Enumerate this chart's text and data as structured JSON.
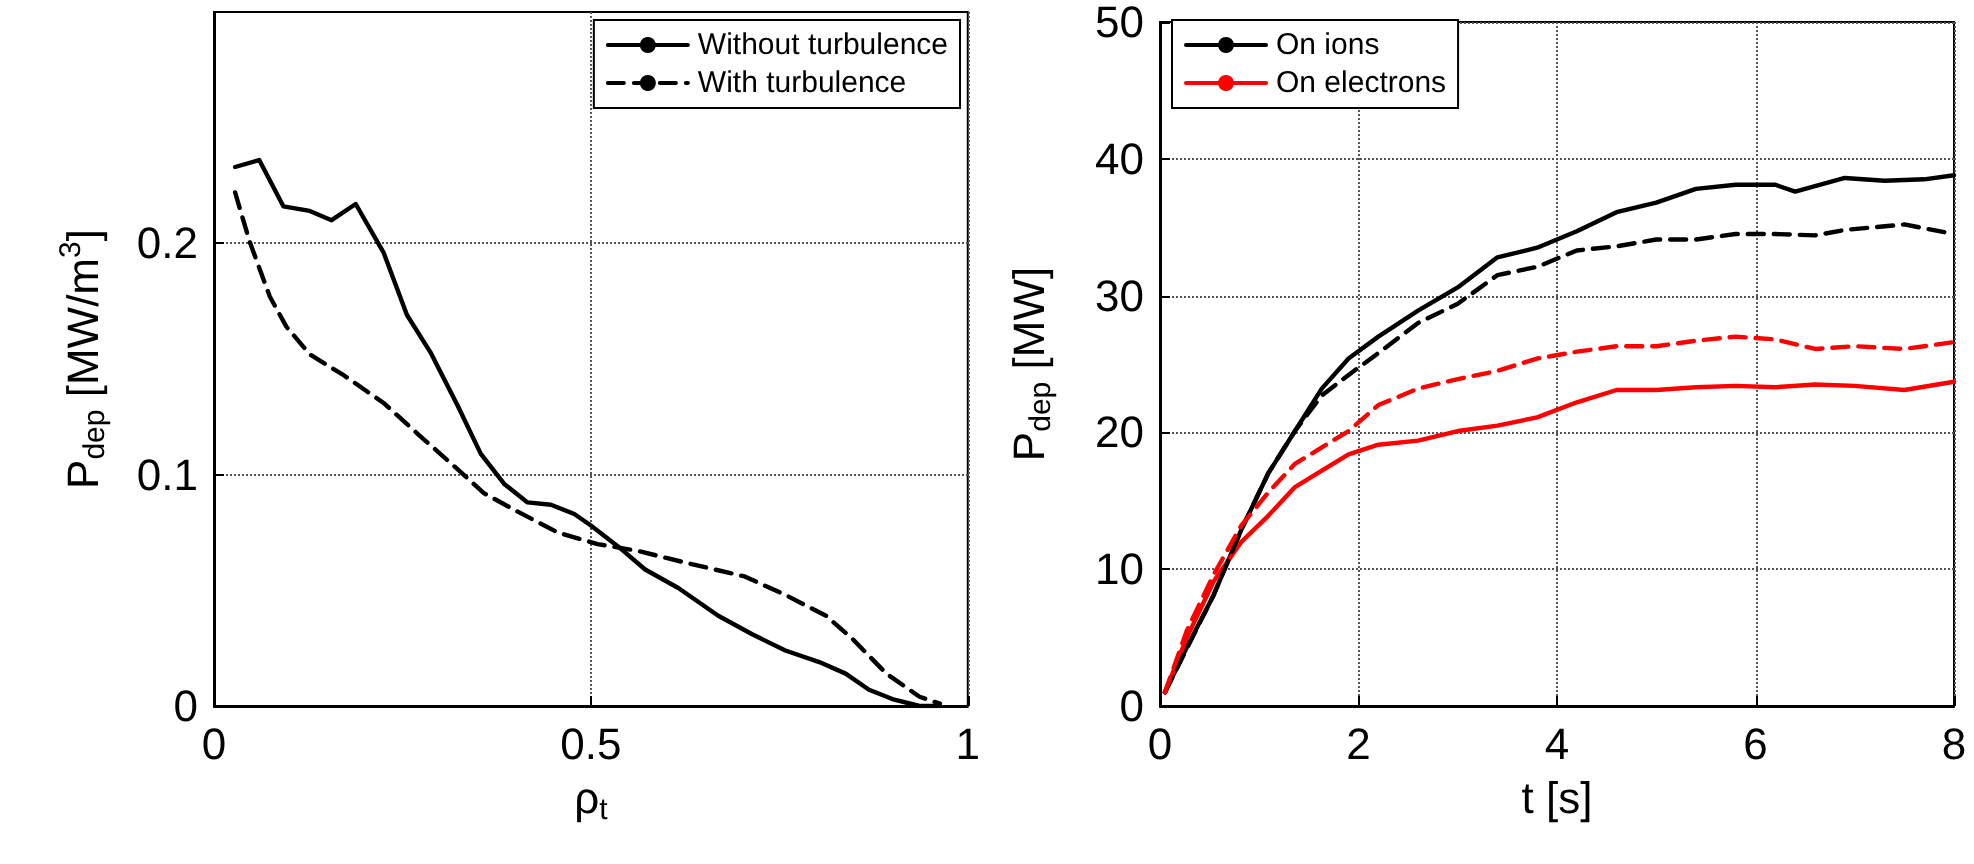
{
  "chart_data": [
    {
      "type": "line",
      "xlabel": "ρ$_{t}$",
      "ylabel": "P$_{dep}$ [MW/m$^{3}$]",
      "xlim": [
        0,
        1
      ],
      "xticks": [
        0,
        0.5,
        1
      ],
      "ylim": [
        0,
        0.3
      ],
      "yticks": [
        0,
        0.1,
        0.2
      ],
      "grid": true,
      "legend": "top right",
      "marker": "none",
      "series": [
        {
          "name": "Without turbulence",
          "color": "#000000",
          "line_style": "solid",
          "x": [
            0.028,
            0.06,
            0.092,
            0.127,
            0.156,
            0.188,
            0.225,
            0.256,
            0.287,
            0.323,
            0.354,
            0.385,
            0.416,
            0.447,
            0.478,
            0.5,
            0.536,
            0.572,
            0.616,
            0.669,
            0.714,
            0.758,
            0.803,
            0.838,
            0.869,
            0.9,
            0.936,
            0.963
          ],
          "values": [
            0.233,
            0.236,
            0.216,
            0.214,
            0.21,
            0.217,
            0.196,
            0.169,
            0.153,
            0.13,
            0.109,
            0.096,
            0.088,
            0.087,
            0.083,
            0.078,
            0.069,
            0.059,
            0.051,
            0.039,
            0.031,
            0.024,
            0.019,
            0.014,
            0.007,
            0.003,
            0.0,
            0.0
          ]
        },
        {
          "name": "With turbulence",
          "color": "#000000",
          "line_style": "dashed",
          "x": [
            0.028,
            0.047,
            0.074,
            0.096,
            0.127,
            0.172,
            0.225,
            0.269,
            0.314,
            0.358,
            0.403,
            0.456,
            0.509,
            0.563,
            0.625,
            0.704,
            0.758,
            0.812,
            0.847,
            0.892,
            0.936,
            0.963
          ],
          "values": [
            0.222,
            0.201,
            0.177,
            0.164,
            0.152,
            0.143,
            0.131,
            0.118,
            0.105,
            0.092,
            0.084,
            0.075,
            0.07,
            0.067,
            0.062,
            0.056,
            0.048,
            0.039,
            0.029,
            0.014,
            0.004,
            0.001
          ]
        }
      ]
    },
    {
      "type": "line",
      "xlabel": "t [s]",
      "ylabel": "P$_{dep}$ [MW]",
      "xlim": [
        0,
        8
      ],
      "xticks": [
        0,
        2,
        4,
        6,
        8
      ],
      "ylim": [
        0,
        50
      ],
      "yticks": [
        0,
        10,
        20,
        30,
        40,
        50
      ],
      "grid": true,
      "legend": "top left",
      "marker": "none",
      "series": [
        {
          "name": "On ions",
          "color": "#000000",
          "line_style": "solid",
          "x": [
            0.05,
            0.27,
            0.54,
            0.82,
            1.09,
            1.36,
            1.63,
            1.9,
            2.2,
            2.6,
            3.0,
            3.4,
            3.8,
            4.2,
            4.6,
            5.0,
            5.4,
            5.8,
            6.2,
            6.4,
            6.6,
            6.9,
            7.3,
            7.7,
            8.0
          ],
          "values": [
            1.0,
            4.3,
            8.1,
            12.9,
            17.0,
            20.1,
            23.2,
            25.4,
            27.0,
            28.9,
            30.6,
            32.8,
            33.5,
            34.7,
            36.1,
            36.8,
            37.8,
            38.1,
            38.1,
            37.6,
            38.0,
            38.6,
            38.4,
            38.5,
            38.8
          ]
        },
        {
          "name": "On electrons",
          "color": "#ff0000",
          "line_style": "solid",
          "x": [
            0.05,
            0.27,
            0.54,
            0.82,
            1.09,
            1.36,
            1.63,
            1.9,
            2.2,
            2.6,
            3.0,
            3.4,
            3.8,
            4.2,
            4.6,
            5.0,
            5.4,
            5.8,
            6.2,
            6.6,
            7.0,
            7.5,
            8.0
          ],
          "values": [
            1.0,
            5.0,
            9.1,
            12.0,
            13.9,
            16.0,
            17.2,
            18.4,
            19.1,
            19.4,
            20.1,
            20.5,
            21.1,
            22.2,
            23.1,
            23.1,
            23.3,
            23.4,
            23.3,
            23.5,
            23.4,
            23.1,
            23.7
          ]
        },
        {
          "color": "#000000",
          "line_style": "dashed",
          "x": [
            0.05,
            0.54,
            0.82,
            1.09,
            1.36,
            1.63,
            1.9,
            2.2,
            2.6,
            3.0,
            3.4,
            3.8,
            4.2,
            4.6,
            5.0,
            5.4,
            5.8,
            6.2,
            6.6,
            6.9,
            7.5,
            8.0
          ],
          "values": [
            1.0,
            8.1,
            12.9,
            17.0,
            20.1,
            22.7,
            24.2,
            25.8,
            28.0,
            29.4,
            31.5,
            32.1,
            33.3,
            33.6,
            34.1,
            34.1,
            34.5,
            34.5,
            34.4,
            34.8,
            35.2,
            34.5
          ]
        },
        {
          "color": "#ff0000",
          "line_style": "dashed",
          "x": [
            0.05,
            0.27,
            0.54,
            0.82,
            1.09,
            1.36,
            1.63,
            1.9,
            2.2,
            2.6,
            3.0,
            3.4,
            3.8,
            4.2,
            4.6,
            5.0,
            5.4,
            5.8,
            6.2,
            6.6,
            7.0,
            7.5,
            8.0
          ],
          "values": [
            1.0,
            5.5,
            9.6,
            13.2,
            15.6,
            17.7,
            18.9,
            20.1,
            22.0,
            23.2,
            23.9,
            24.5,
            25.4,
            25.9,
            26.3,
            26.3,
            26.7,
            27.0,
            26.8,
            26.1,
            26.3,
            26.1,
            26.6
          ]
        }
      ]
    }
  ]
}
